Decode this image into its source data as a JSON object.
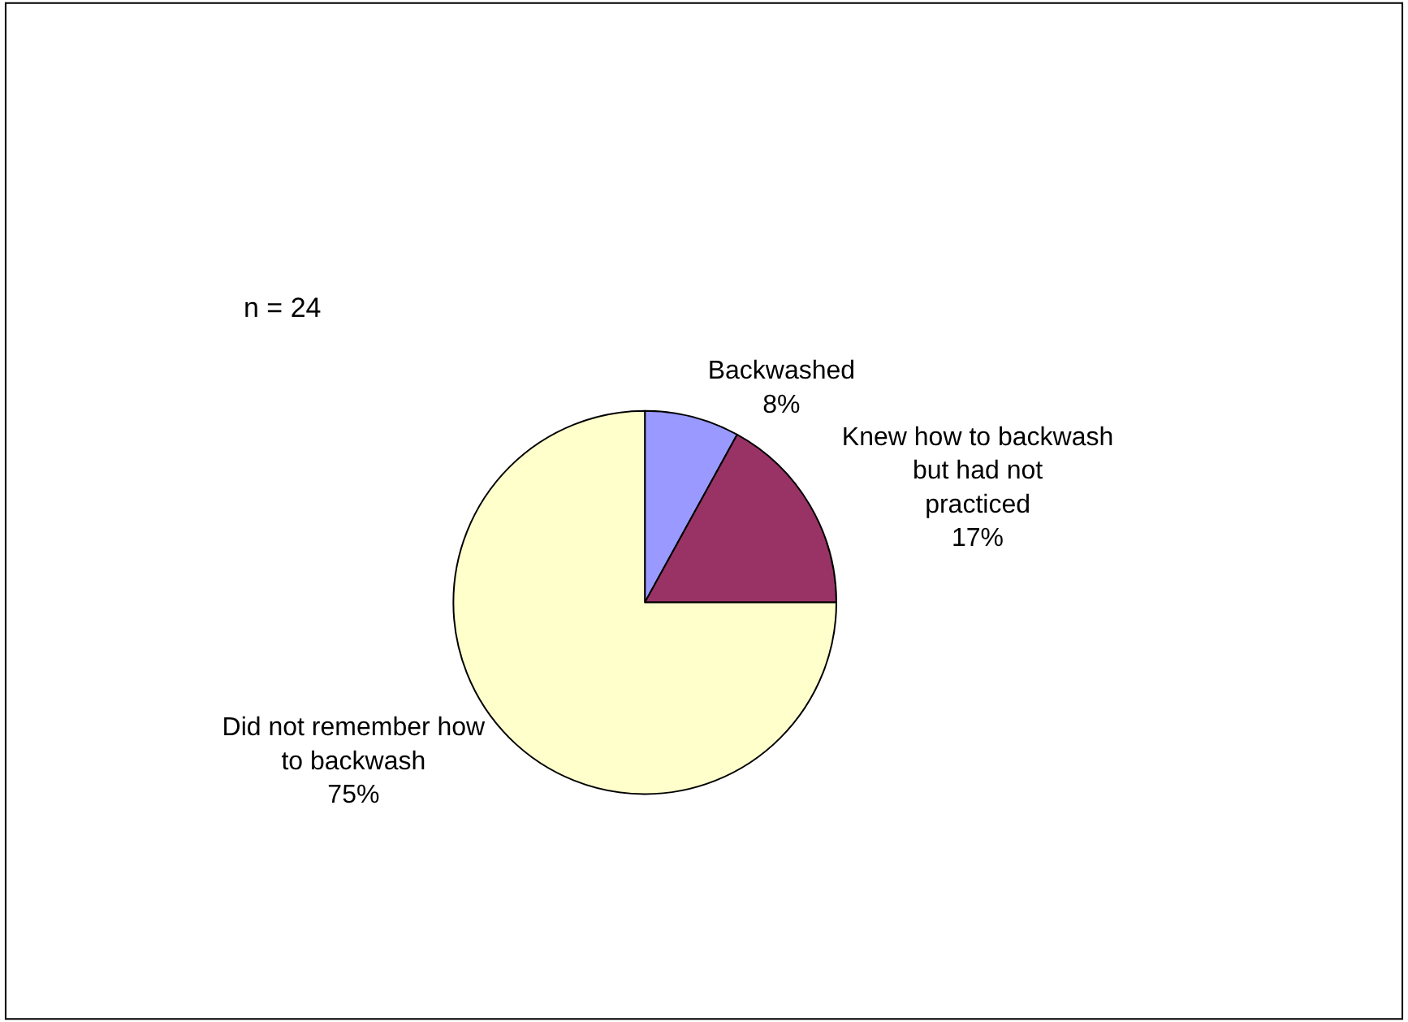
{
  "chart_data": {
    "type": "pie",
    "categories": [
      "Backwashed",
      "Knew how to backwash but had not practiced",
      "Did not remember how to backwash"
    ],
    "values": [
      8,
      17,
      75
    ],
    "value_labels": [
      "8%",
      "17%",
      "75%"
    ],
    "colors": [
      "#9999ff",
      "#993366",
      "#ffffcc"
    ],
    "annotations": [
      "n = 24"
    ],
    "legend": false
  }
}
